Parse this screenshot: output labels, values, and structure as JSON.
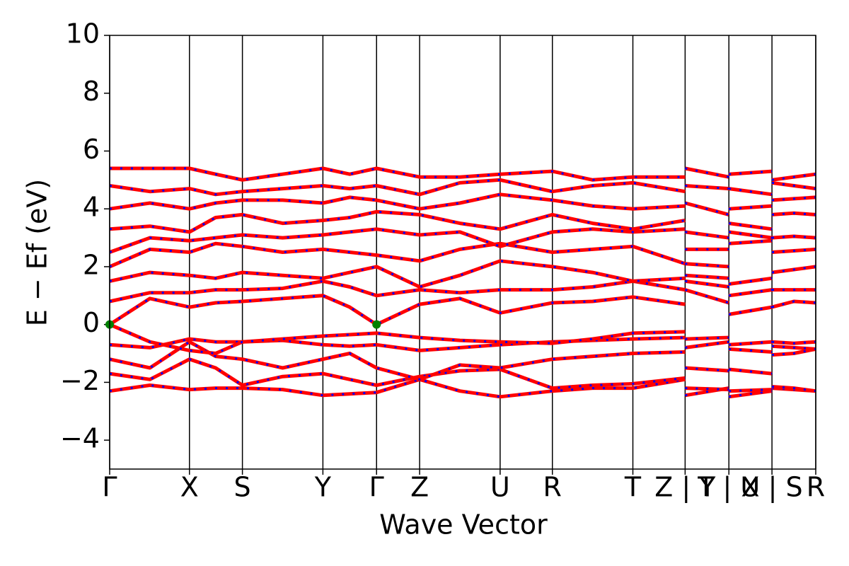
{
  "chart_data": {
    "type": "line",
    "xlabel": "Wave Vector",
    "ylabel": "E − Ef (eV)",
    "xlim": [
      0,
      1
    ],
    "ylim": [
      -5,
      10
    ],
    "yticks": [
      {
        "value": -4,
        "label": "−4"
      },
      {
        "value": -2,
        "label": "−2"
      },
      0,
      2,
      4,
      6,
      8,
      10
    ],
    "xticks": [
      {
        "value": 0,
        "label": "Γ"
      },
      {
        "value": 0.113,
        "label": "X"
      },
      {
        "value": 0.188,
        "label": "S"
      },
      {
        "value": 0.302,
        "label": "Y"
      },
      {
        "value": 0.378,
        "label": "Γ"
      },
      {
        "value": 0.439,
        "label": "Z"
      },
      {
        "value": 0.553,
        "label": "U"
      },
      {
        "value": 0.627,
        "label": "R"
      },
      {
        "value": 0.741,
        "label": "T"
      },
      {
        "value": 0.815,
        "label": "Z | Y"
      },
      {
        "value": 0.877,
        "label": "T | U"
      },
      {
        "value": 0.938,
        "label": "X | S"
      },
      {
        "value": 1,
        "label": "R"
      }
    ],
    "dash_color": "#0000ff",
    "x": [
      0,
      0.057,
      0.113,
      0.15,
      0.188,
      0.245,
      0.302,
      0.34,
      0.378,
      0.439,
      0.496,
      0.553,
      0.627,
      0.684,
      0.741,
      0.815,
      0.815,
      0.815,
      0.877,
      0.877,
      0.877,
      0.938,
      0.938,
      0.938,
      0.969,
      1
    ],
    "series": [
      {
        "color": "#ff0000",
        "values": [
          -2.3,
          -2.1,
          -2.25,
          -2.2,
          -2.2,
          -2.25,
          -2.45,
          -2.4,
          -2.35,
          -1.9,
          -2.3,
          -2.5,
          -2.3,
          -2.2,
          -2.2,
          -1.9,
          null,
          -2.45,
          -2.2,
          null,
          -2.5,
          -2.3,
          null,
          -2.2,
          -2.25,
          -2.3
        ]
      },
      {
        "color": "#ff0000",
        "values": [
          -1.7,
          -1.9,
          -1.2,
          -1.5,
          -2.1,
          -1.8,
          -1.7,
          -1.9,
          -2.1,
          -1.8,
          -1.6,
          -1.55,
          -2.2,
          -2.1,
          -2.05,
          -1.85,
          null,
          -2.2,
          -2.25,
          null,
          -2.3,
          -2.25,
          null,
          -2.15,
          -2.2,
          -2.3
        ]
      },
      {
        "color": "#ff0000",
        "values": [
          -1.2,
          -1.5,
          -0.6,
          -1.1,
          -1.2,
          -1.5,
          -1.2,
          -1.0,
          -1.5,
          -1.9,
          -1.4,
          -1.5,
          -1.2,
          -1.1,
          -1.0,
          -0.95,
          null,
          -1.5,
          -1.6,
          null,
          -1.55,
          -1.7,
          null,
          -1.05,
          -1.0,
          -0.85
        ]
      },
      {
        "color": "#ff0000",
        "values": [
          -0.7,
          -0.8,
          -0.5,
          -0.6,
          -0.6,
          -0.55,
          -0.7,
          -0.75,
          -0.7,
          -0.9,
          -0.8,
          -0.7,
          -0.6,
          -0.55,
          -0.5,
          -0.45,
          null,
          -0.8,
          -0.6,
          null,
          -0.85,
          -0.95,
          null,
          -0.6,
          -0.65,
          -0.6
        ]
      },
      {
        "color": "#ff0000",
        "values": [
          0,
          -0.6,
          -0.9,
          -1.0,
          -0.6,
          -0.5,
          -0.4,
          -0.35,
          -0.3,
          -0.45,
          -0.55,
          -0.6,
          -0.65,
          -0.5,
          -0.3,
          -0.25,
          null,
          -0.5,
          -0.45,
          null,
          -0.7,
          -0.6,
          null,
          -0.75,
          -0.8,
          -0.85
        ]
      },
      {
        "color": "#ff0000",
        "values": [
          0,
          0.9,
          0.6,
          0.75,
          0.8,
          0.9,
          1.0,
          0.6,
          0,
          0.7,
          0.9,
          0.4,
          0.75,
          0.8,
          0.95,
          0.7,
          null,
          1.2,
          0.75,
          null,
          0.35,
          0.6,
          null,
          0.6,
          0.8,
          0.75
        ]
      },
      {
        "color": "#ff0000",
        "values": [
          0.8,
          1.1,
          1.1,
          1.2,
          1.2,
          1.25,
          1.5,
          1.3,
          1.0,
          1.2,
          1.1,
          1.2,
          1.2,
          1.3,
          1.5,
          1.2,
          null,
          1.5,
          1.3,
          null,
          1.0,
          1.2,
          null,
          1.2,
          1.2,
          1.2
        ]
      },
      {
        "color": "#ff0000",
        "values": [
          1.5,
          1.8,
          1.7,
          1.6,
          1.8,
          1.7,
          1.6,
          1.8,
          2.0,
          1.3,
          1.7,
          2.2,
          2.0,
          1.8,
          1.5,
          1.6,
          null,
          1.7,
          1.6,
          null,
          1.4,
          1.6,
          null,
          1.8,
          1.9,
          2.0
        ]
      },
      {
        "color": "#ff0000",
        "values": [
          2.0,
          2.6,
          2.5,
          2.8,
          2.7,
          2.5,
          2.6,
          2.5,
          2.4,
          2.2,
          2.6,
          2.8,
          2.5,
          2.6,
          2.7,
          2.1,
          null,
          2.1,
          2.0,
          null,
          2.8,
          2.9,
          null,
          2.5,
          2.55,
          2.6
        ]
      },
      {
        "color": "#ff0000",
        "values": [
          2.5,
          3.0,
          2.9,
          3.0,
          3.1,
          3.0,
          3.1,
          3.2,
          3.3,
          3.1,
          3.2,
          2.7,
          3.2,
          3.3,
          3.2,
          3.3,
          null,
          2.6,
          2.6,
          null,
          3.2,
          3.0,
          null,
          3.0,
          3.05,
          3.0
        ]
      },
      {
        "color": "#ff0000",
        "values": [
          3.3,
          3.4,
          3.2,
          3.7,
          3.8,
          3.5,
          3.6,
          3.7,
          3.9,
          3.8,
          3.5,
          3.3,
          3.8,
          3.5,
          3.3,
          3.6,
          null,
          3.2,
          3.0,
          null,
          3.5,
          3.3,
          null,
          3.8,
          3.85,
          3.8
        ]
      },
      {
        "color": "#ff0000",
        "values": [
          4.0,
          4.2,
          4.0,
          4.2,
          4.3,
          4.3,
          4.2,
          4.4,
          4.3,
          4.0,
          4.2,
          4.5,
          4.3,
          4.1,
          4.0,
          4.1,
          null,
          4.2,
          3.8,
          null,
          4.0,
          4.1,
          null,
          4.3,
          4.35,
          4.4
        ]
      },
      {
        "color": "#ff0000",
        "values": [
          4.8,
          4.6,
          4.7,
          4.5,
          4.6,
          4.7,
          4.8,
          4.7,
          4.8,
          4.5,
          4.9,
          5.0,
          4.6,
          4.8,
          4.9,
          4.6,
          null,
          4.8,
          4.7,
          null,
          4.7,
          4.5,
          null,
          4.9,
          4.8,
          4.7
        ]
      },
      {
        "color": "#ff0000",
        "values": [
          5.4,
          5.4,
          5.4,
          5.2,
          5.0,
          5.2,
          5.4,
          5.2,
          5.4,
          5.1,
          5.1,
          5.2,
          5.3,
          5.0,
          5.1,
          5.1,
          null,
          5.4,
          5.1,
          null,
          5.2,
          5.3,
          null,
          5.0,
          5.1,
          5.2
        ]
      }
    ],
    "points": {
      "color": "#008000",
      "x": [
        0,
        0.378
      ],
      "y": [
        0,
        0
      ]
    }
  }
}
